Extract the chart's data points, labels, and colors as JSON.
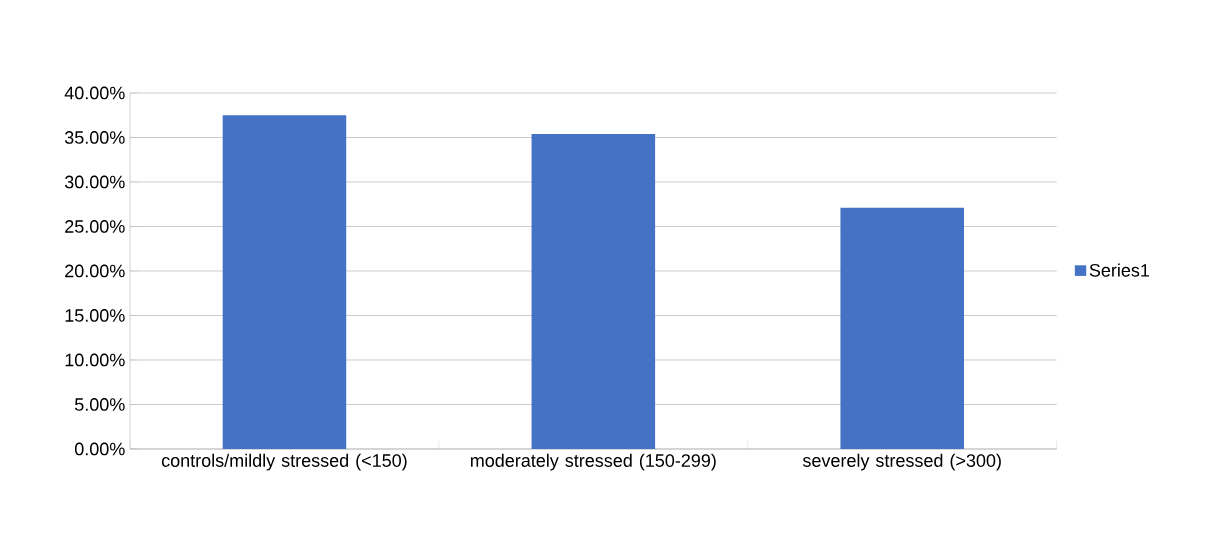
{
  "chart_data": {
    "type": "bar",
    "categories": [
      "controls/mildly stressed (<150)",
      "moderately stressed (150-299)",
      "severely stressed (>300)"
    ],
    "series": [
      {
        "name": "Series1",
        "color": "#4472c4",
        "values": [
          37.5,
          35.4,
          27.1
        ]
      }
    ],
    "ylim": [
      0,
      40
    ],
    "yticks": [
      {
        "value": 0,
        "label": "0.00%"
      },
      {
        "value": 5,
        "label": "5.00%"
      },
      {
        "value": 10,
        "label": "10.00%"
      },
      {
        "value": 15,
        "label": "15.00%"
      },
      {
        "value": 20,
        "label": "20.00%"
      },
      {
        "value": 25,
        "label": "25.00%"
      },
      {
        "value": 30,
        "label": "30.00%"
      },
      {
        "value": 35,
        "label": "35.00%"
      },
      {
        "value": 40,
        "label": "40.00%"
      }
    ],
    "grid": "y",
    "legend": "right"
  }
}
